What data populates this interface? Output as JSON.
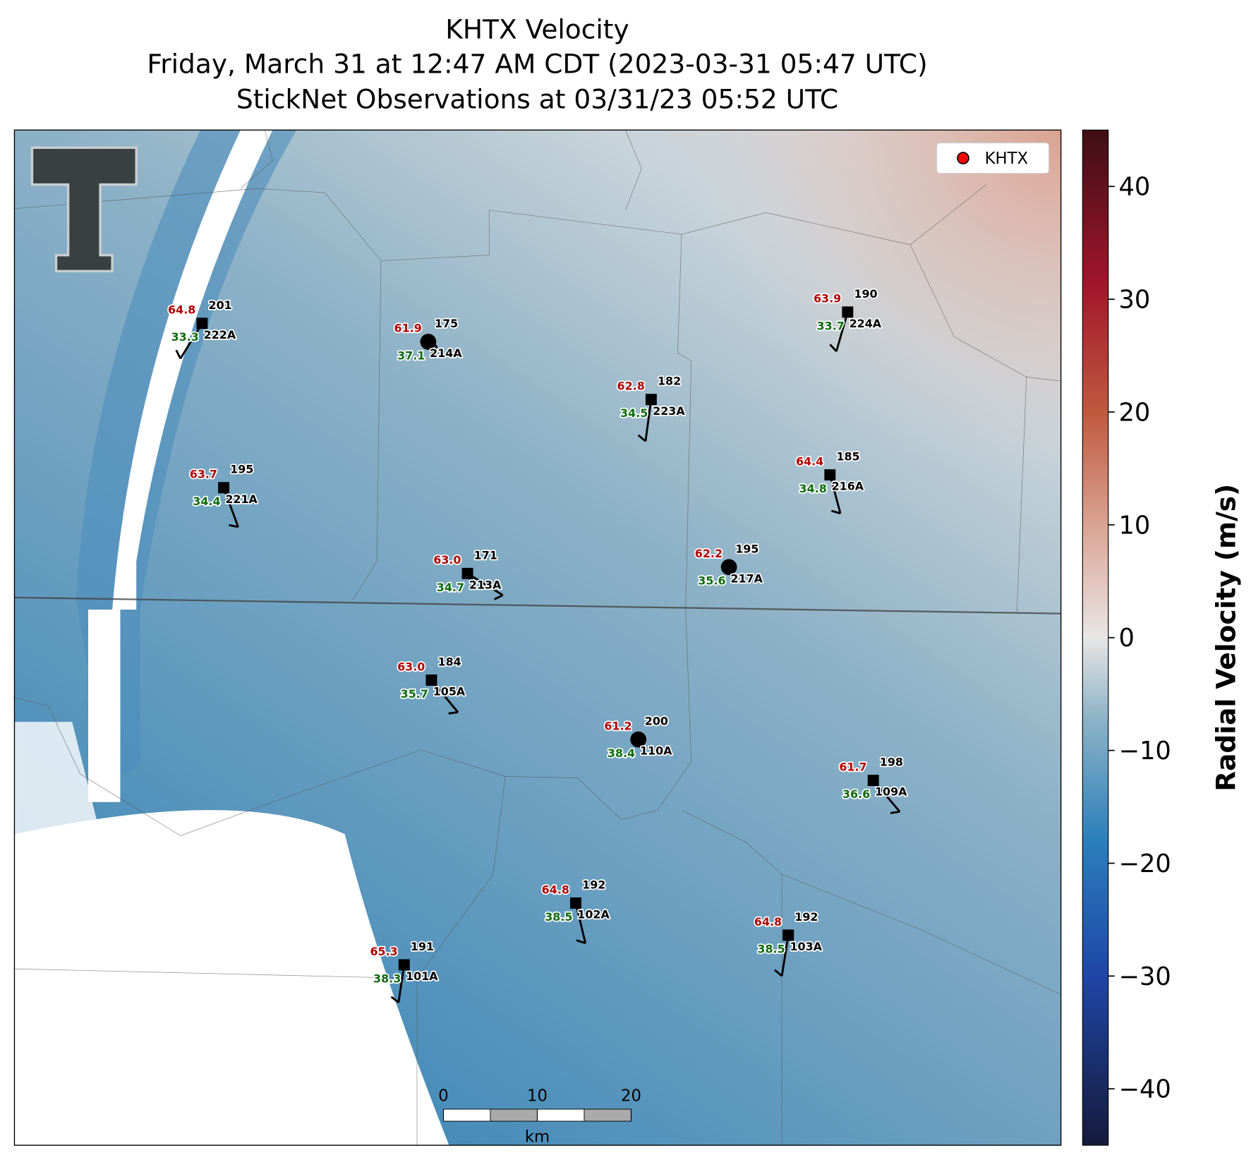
{
  "title": [
    "KHTX Velocity",
    "Friday, March 31 at 12:47 AM CDT (2023-03-31 05:47 UTC)",
    "StickNet Observations at 03/31/23 05:52 UTC"
  ],
  "legend": {
    "label": "KHTX",
    "color": "#ff0000"
  },
  "colorbar": {
    "label": "Radial Velocity (m/s)",
    "lim": [
      -45,
      45
    ],
    "ticks": [
      {
        "value": -40,
        "label": "−40"
      },
      {
        "value": -30,
        "label": "−30"
      },
      {
        "value": -20,
        "label": "−20"
      },
      {
        "value": -10,
        "label": "−10"
      },
      0,
      10,
      20,
      30,
      40
    ]
  },
  "scale_bar": {
    "ticks": [
      0,
      10,
      20
    ],
    "unit": "km"
  },
  "stations": [
    {
      "id": "222A",
      "temperature": "64.8",
      "dewpoint": "33.3",
      "pressure": 201
    },
    {
      "id": "214A",
      "temperature": "61.9",
      "dewpoint": "37.1",
      "pressure": 175
    },
    {
      "id": "224A",
      "temperature": "63.9",
      "dewpoint": "33.7",
      "pressure": 190
    },
    {
      "id": "223A",
      "temperature": "62.8",
      "dewpoint": "34.5",
      "pressure": 182
    },
    {
      "id": "221A",
      "temperature": "63.7",
      "dewpoint": "34.4",
      "pressure": 195
    },
    {
      "id": "216A",
      "temperature": "64.4",
      "dewpoint": "34.8",
      "pressure": 185
    },
    {
      "id": "213A",
      "temperature": "63.0",
      "dewpoint": "34.7",
      "pressure": 171
    },
    {
      "id": "217A",
      "temperature": "62.2",
      "dewpoint": "35.6",
      "pressure": 195
    },
    {
      "id": "105A",
      "temperature": "63.0",
      "dewpoint": "35.7",
      "pressure": 184
    },
    {
      "id": "110A",
      "temperature": "61.2",
      "dewpoint": "38.4",
      "pressure": 200
    },
    {
      "id": "109A",
      "temperature": "61.7",
      "dewpoint": "36.6",
      "pressure": 198
    },
    {
      "id": "102A",
      "temperature": "64.8",
      "dewpoint": "38.5",
      "pressure": 192
    },
    {
      "id": "103A",
      "temperature": "64.8",
      "dewpoint": "38.5",
      "pressure": 192
    },
    {
      "id": "101A",
      "temperature": "65.3",
      "dewpoint": "38.3",
      "pressure": 191
    }
  ]
}
